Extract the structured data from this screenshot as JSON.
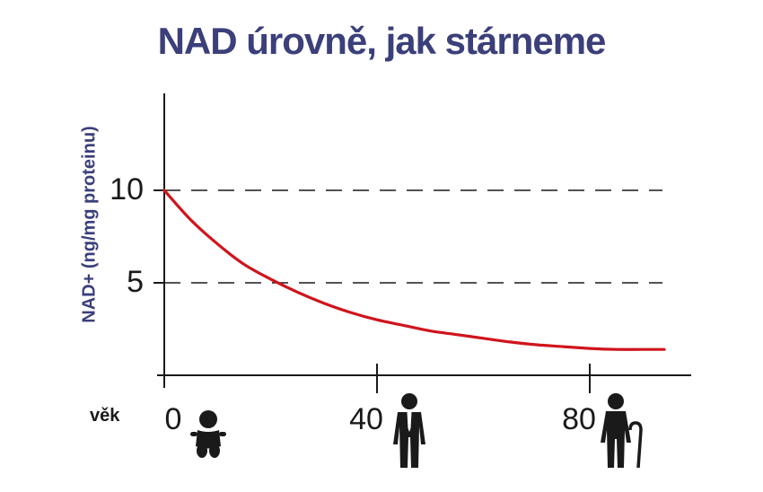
{
  "colors": {
    "title": "#3b3f7a",
    "axis_label": "#3b3f7a",
    "curve": "#d0141c",
    "axis": "#1a1a1a",
    "grid": "#1a1a1a",
    "icon": "#1a1a1a"
  },
  "chart_data": {
    "type": "line",
    "title": "NAD úrovně, jak stárneme",
    "ylabel": "NAD+ (ng/mg proteinu)",
    "xlabel": "věk",
    "xlim": [
      0,
      100
    ],
    "ylim": [
      0,
      15
    ],
    "x_ticks": [
      0,
      40,
      80
    ],
    "x_tick_labels": [
      "0",
      "40",
      "80"
    ],
    "y_ticks": [
      5,
      10
    ],
    "y_tick_labels": [
      "5",
      "10"
    ],
    "grid": "dashed horizontal lines at y = 5 and y = 10",
    "series": [
      {
        "x": [
          0,
          5,
          10,
          15,
          20,
          25,
          30,
          35,
          40,
          45,
          50,
          55,
          60,
          65,
          70,
          75,
          80,
          85,
          90,
          94
        ],
        "y": [
          10.0,
          8.4,
          7.1,
          6.0,
          5.2,
          4.5,
          3.9,
          3.4,
          3.0,
          2.7,
          2.4,
          2.2,
          2.0,
          1.8,
          1.65,
          1.55,
          1.45,
          1.4,
          1.4,
          1.4
        ]
      }
    ],
    "x_icons": [
      "baby-icon",
      "businessman-icon",
      "elderly-with-cane-icon"
    ]
  }
}
